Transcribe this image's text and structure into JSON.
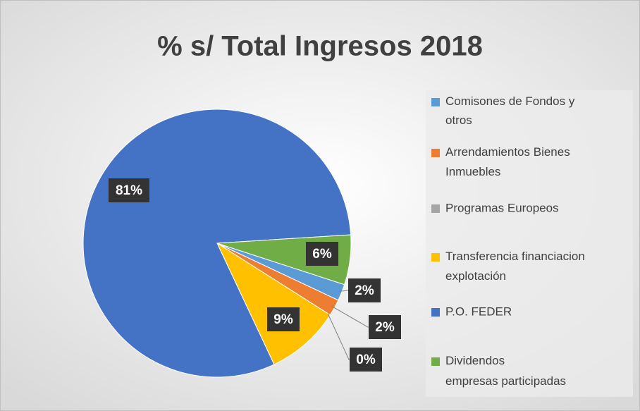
{
  "chart_data": {
    "type": "pie",
    "title": "% s/ Total Ingresos 2018",
    "categories": [
      "Comisones de Fondos y otros",
      "Arrendamientos Bienes Inmuebles",
      "Programas Europeos",
      "Transferencia financiacion explotación",
      "P.O. FEDER",
      "Dividendos empresas participadas"
    ],
    "values": [
      2,
      2,
      0,
      9,
      81,
      6
    ],
    "value_labels": [
      "2%",
      "2%",
      "0%",
      "9%",
      "81%",
      "6%"
    ],
    "colors": [
      "#5b9bd5",
      "#ed7d31",
      "#a5a5a5",
      "#ffc000",
      "#4472c4",
      "#70ad47"
    ],
    "legend": "right"
  }
}
